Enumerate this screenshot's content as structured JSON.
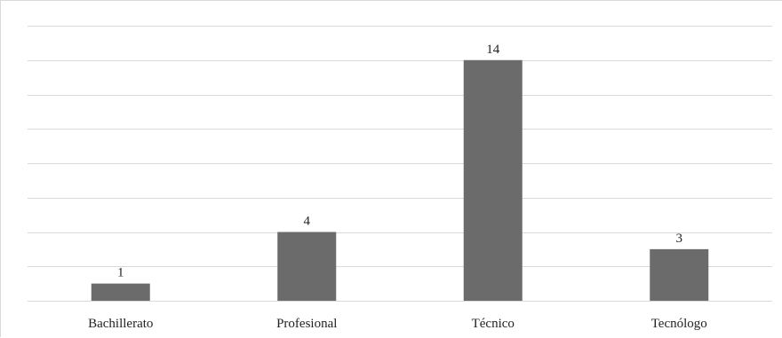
{
  "chart_data": {
    "type": "bar",
    "title": "",
    "xlabel": "",
    "ylabel": "",
    "categories": [
      "Bachillerato",
      "Profesional",
      "Técnico",
      "Tecnólogo"
    ],
    "values": [
      1,
      4,
      14,
      3
    ],
    "ylim": [
      0,
      16
    ],
    "y_gridline_step": 2,
    "grid": true,
    "legend": "none",
    "colors": {
      "bar": "#6b6b6b",
      "gridline": "#d9d9d9",
      "text": "#222222"
    }
  }
}
